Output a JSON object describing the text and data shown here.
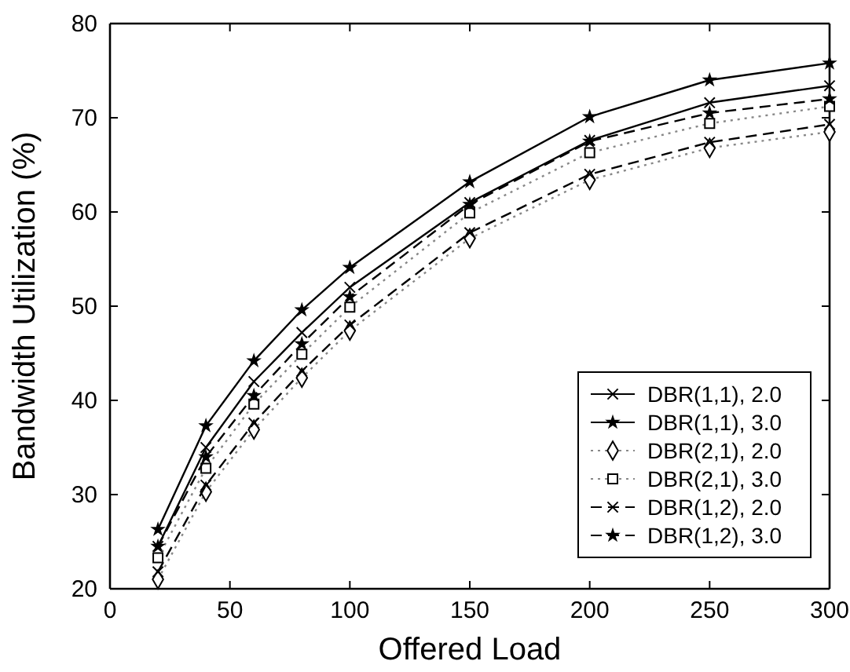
{
  "chart_data": {
    "type": "line",
    "xlabel": "Offered Load",
    "ylabel": "Bandwidth Utilization (%)",
    "x": [
      20,
      40,
      60,
      80,
      100,
      150,
      200,
      250,
      300
    ],
    "xlim": [
      0,
      300
    ],
    "ylim": [
      20,
      80
    ],
    "xticks": [
      0,
      50,
      100,
      150,
      200,
      250,
      300
    ],
    "yticks": [
      20,
      30,
      40,
      50,
      60,
      70,
      80
    ],
    "legend": "right",
    "grid": false,
    "series": [
      {
        "name": "DBR(1,1), 2.0",
        "color": "#000000",
        "marker": "cross",
        "line_style": "solid",
        "values": [
          24.5,
          35,
          42,
          47.2,
          52,
          61,
          67.6,
          71.6,
          73.4
        ]
      },
      {
        "name": "DBR(1,1), 3.0",
        "color": "#000000",
        "marker": "star",
        "line_style": "solid",
        "values": [
          26.3,
          37.3,
          44.2,
          49.6,
          54.1,
          63.2,
          70.1,
          74,
          75.8
        ]
      },
      {
        "name": "DBR(2,1), 2.0",
        "color": "#000000",
        "marker": "diamond",
        "line_style": "dotted",
        "values": [
          21,
          30.3,
          36.9,
          42.4,
          47.4,
          57.2,
          63.4,
          66.8,
          68.5
        ]
      },
      {
        "name": "DBR(2,1), 3.0",
        "color": "#000000",
        "marker": "square",
        "line_style": "dotted",
        "values": [
          23.3,
          32.8,
          39.6,
          44.9,
          49.9,
          59.9,
          66.3,
          69.4,
          71.2
        ]
      },
      {
        "name": "DBR(1,2), 2.0",
        "color": "#000000",
        "marker": "cross",
        "line_style": "dashed",
        "values": [
          21.8,
          31,
          37.6,
          43.1,
          48,
          57.8,
          64,
          67.4,
          69.3
        ]
      },
      {
        "name": "DBR(1,2), 3.0",
        "color": "#000000",
        "marker": "star",
        "line_style": "dashed",
        "values": [
          24.5,
          34,
          40.5,
          46,
          51,
          60.8,
          67.5,
          70.5,
          72
        ]
      }
    ]
  }
}
